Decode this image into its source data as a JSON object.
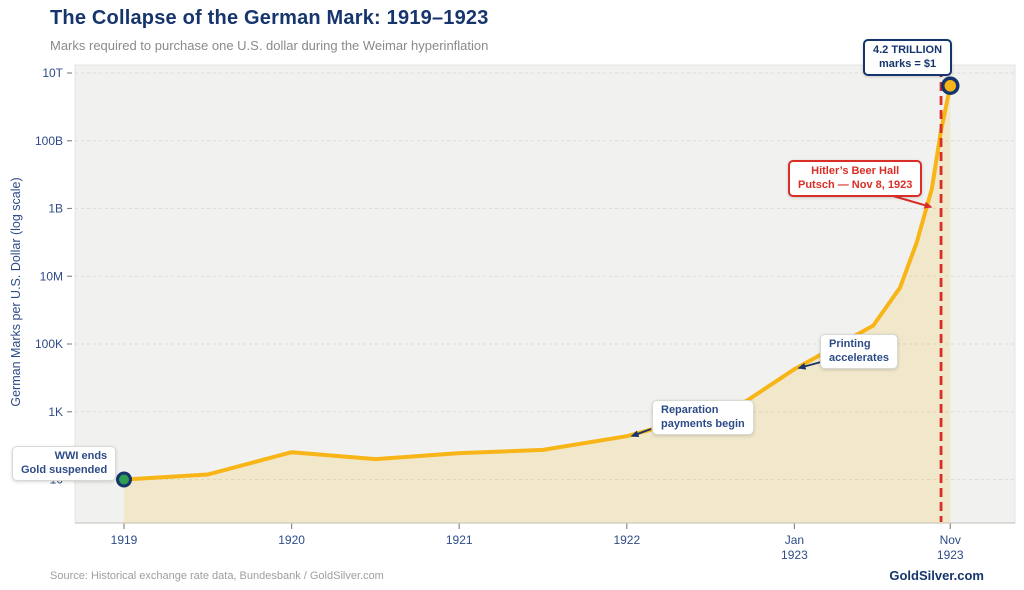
{
  "header": {
    "title": "The Collapse of the German Mark: 1919–1923",
    "subtitle": "Marks required to purchase one U.S. dollar during the Weimar hyperinflation"
  },
  "footer": {
    "source": "Source: Historical exchange rate data, Bundesbank / GoldSilver.com",
    "brand": "GoldSilver.com"
  },
  "chart_data": {
    "type": "area",
    "title": "The Collapse of the German Mark: 1919–1923",
    "ylabel": "German Marks per U.S. Dollar (log scale)",
    "y_scale": "log10",
    "y_ticks": [
      {
        "label": "10T",
        "value": 10000000000000
      },
      {
        "label": "100B",
        "value": 100000000000
      },
      {
        "label": "1B",
        "value": 1000000000
      },
      {
        "label": "10M",
        "value": 10000000
      },
      {
        "label": "100K",
        "value": 100000
      },
      {
        "label": "1K",
        "value": 1000
      },
      {
        "label": "10",
        "value": 10
      }
    ],
    "x_ticks": [
      {
        "lines": [
          "1919"
        ],
        "pos": 0
      },
      {
        "lines": [
          "1920"
        ],
        "pos": 1
      },
      {
        "lines": [
          "1921"
        ],
        "pos": 2
      },
      {
        "lines": [
          "1922"
        ],
        "pos": 3
      },
      {
        "lines": [
          "Jan",
          "1923"
        ],
        "pos": 4
      },
      {
        "lines": [
          "Nov",
          "1923"
        ],
        "pos": 4.93
      }
    ],
    "series": [
      {
        "name": "German Marks per U.S. Dollar",
        "points": [
          {
            "date": "Jan 1919",
            "pos": 0,
            "value": 10
          },
          {
            "date": "Jul 1919",
            "pos": 0.5,
            "value": 14
          },
          {
            "date": "Jan 1920",
            "pos": 1,
            "value": 64
          },
          {
            "date": "Jul 1920",
            "pos": 1.5,
            "value": 40
          },
          {
            "date": "Jan 1921",
            "pos": 2,
            "value": 60
          },
          {
            "date": "Jul 1921",
            "pos": 2.5,
            "value": 75
          },
          {
            "date": "Jan 1922",
            "pos": 3,
            "value": 190
          },
          {
            "date": "Sep 1922",
            "pos": 3.67,
            "value": 1500
          },
          {
            "date": "Jan 1923",
            "pos": 4,
            "value": 18000
          },
          {
            "date": "Jun 1923",
            "pos": 4.47,
            "value": 350000
          },
          {
            "date": "Aug 1923",
            "pos": 4.63,
            "value": 4600000
          },
          {
            "date": "Sep 1923",
            "pos": 4.73,
            "value": 99000000
          },
          {
            "date": "Oct 1923",
            "pos": 4.82,
            "value": 3800000000
          },
          {
            "date": "Nov 8 1923",
            "pos": 4.875,
            "value": 200000000000
          },
          {
            "date": "Nov 1923",
            "pos": 4.93,
            "value": 4200000000000
          }
        ]
      }
    ],
    "event_line": {
      "date": "Nov 8, 1923",
      "pos": 4.875
    },
    "colors": {
      "line": "#F7B518",
      "area_fill": "rgba(243,196,74,0.22)",
      "panel": "#F1F1EF",
      "panel_border": "#E4E4E0",
      "grid": "#DCDCD8",
      "axis": "#C9C9C5",
      "tick": "#8A8A86",
      "navy": "#16356D",
      "ink": "#2D4C87",
      "red": "#D92E27",
      "green": "#2E9E50"
    },
    "legend": "none",
    "grid": "horizontal-dashed"
  },
  "annotations": [
    {
      "id": "wwi",
      "variant": "plain",
      "lines": [
        "WWI ends",
        "Gold suspended"
      ]
    },
    {
      "id": "reparations",
      "variant": "plain",
      "lines": [
        "Reparation",
        "payments begin"
      ]
    },
    {
      "id": "printing",
      "variant": "plain",
      "lines": [
        "Printing",
        "accelerates"
      ]
    },
    {
      "id": "putsch",
      "variant": "red",
      "lines": [
        "Hitler’s Beer Hall",
        "Putsch — Nov 8, 1923"
      ]
    },
    {
      "id": "trillion",
      "variant": "navy",
      "lines": [
        "4.2 TRILLION",
        "marks = $1"
      ]
    }
  ]
}
